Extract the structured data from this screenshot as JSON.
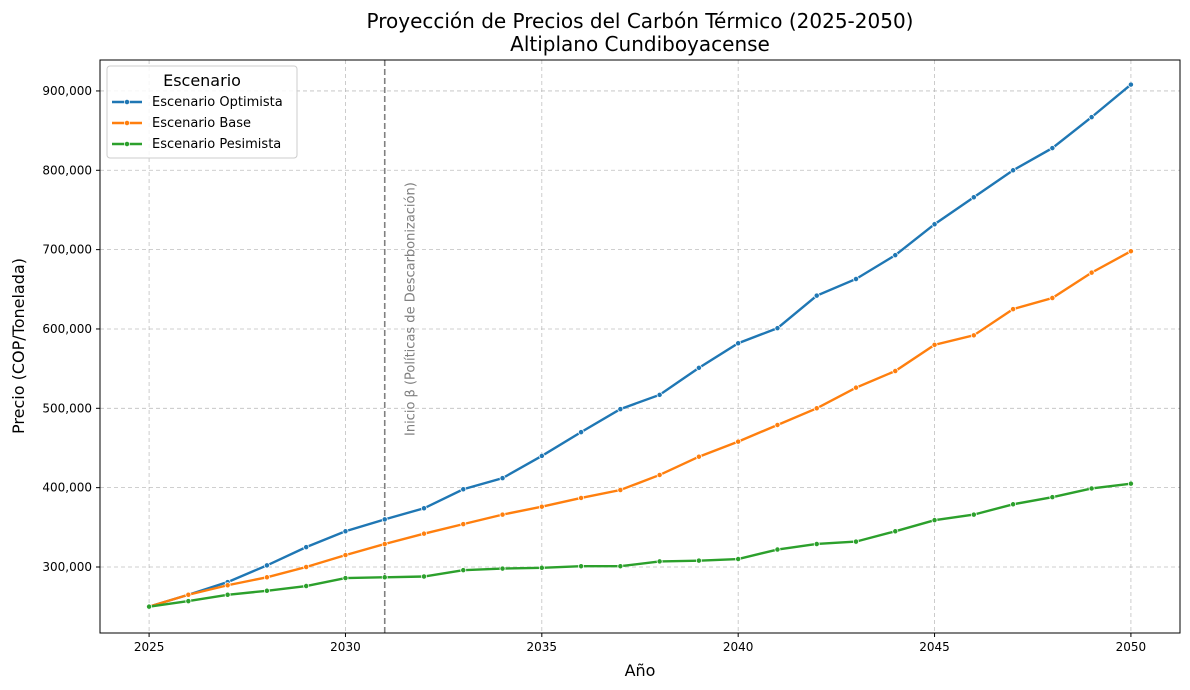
{
  "chart_data": {
    "type": "line",
    "title": "Proyección de Precios del Carbón Térmico (2025-2050)",
    "subtitle": "Altiplano Cundiboyacense",
    "xlabel": "Año",
    "ylabel": "Precio (COP/Tonelada)",
    "xlim": [
      2023.75,
      2051.25
    ],
    "ylim": [
      216800,
      939000
    ],
    "xticks": [
      2025,
      2030,
      2035,
      2040,
      2045,
      2050
    ],
    "yticks": [
      300000,
      400000,
      500000,
      600000,
      700000,
      800000,
      900000
    ],
    "ytick_labels": [
      "300,000",
      "400,000",
      "500,000",
      "600,000",
      "700,000",
      "800,000",
      "900,000"
    ],
    "grid": true,
    "legend": {
      "title": "Escenario",
      "placement": "top-left"
    },
    "x": [
      2025,
      2026,
      2027,
      2028,
      2029,
      2030,
      2031,
      2032,
      2033,
      2034,
      2035,
      2036,
      2037,
      2038,
      2039,
      2040,
      2041,
      2042,
      2043,
      2044,
      2045,
      2046,
      2047,
      2048,
      2049,
      2050
    ],
    "series": [
      {
        "name": "Escenario Optimista",
        "color": "#1f77b4",
        "values": [
          250000,
          265000,
          281000,
          302000,
          325000,
          345000,
          360000,
          374000,
          398000,
          412000,
          440000,
          470000,
          499000,
          517000,
          551000,
          582000,
          601000,
          642000,
          663000,
          693000,
          732000,
          766000,
          800000,
          828000,
          867000,
          908000
        ]
      },
      {
        "name": "Escenario Base",
        "color": "#ff7f0e",
        "values": [
          250000,
          265000,
          277000,
          287000,
          300000,
          315000,
          329000,
          342000,
          354000,
          366000,
          376000,
          387000,
          397000,
          416000,
          439000,
          458000,
          479000,
          500000,
          526000,
          547000,
          580000,
          592000,
          625000,
          639000,
          671000,
          698000
        ]
      },
      {
        "name": "Escenario Pesimista",
        "color": "#2ca02c",
        "values": [
          250000,
          257000,
          265000,
          270000,
          276000,
          286000,
          287000,
          288000,
          296000,
          298000,
          299000,
          301000,
          301000,
          307000,
          308000,
          310000,
          322000,
          329000,
          332000,
          345000,
          359000,
          366000,
          379000,
          388000,
          399000,
          405000
        ]
      }
    ],
    "annotations": [
      {
        "type": "vline",
        "x": 2031,
        "color": "#808080",
        "style": "dashed",
        "text": "Inicio β (Políticas de Descarbonización)"
      }
    ]
  }
}
